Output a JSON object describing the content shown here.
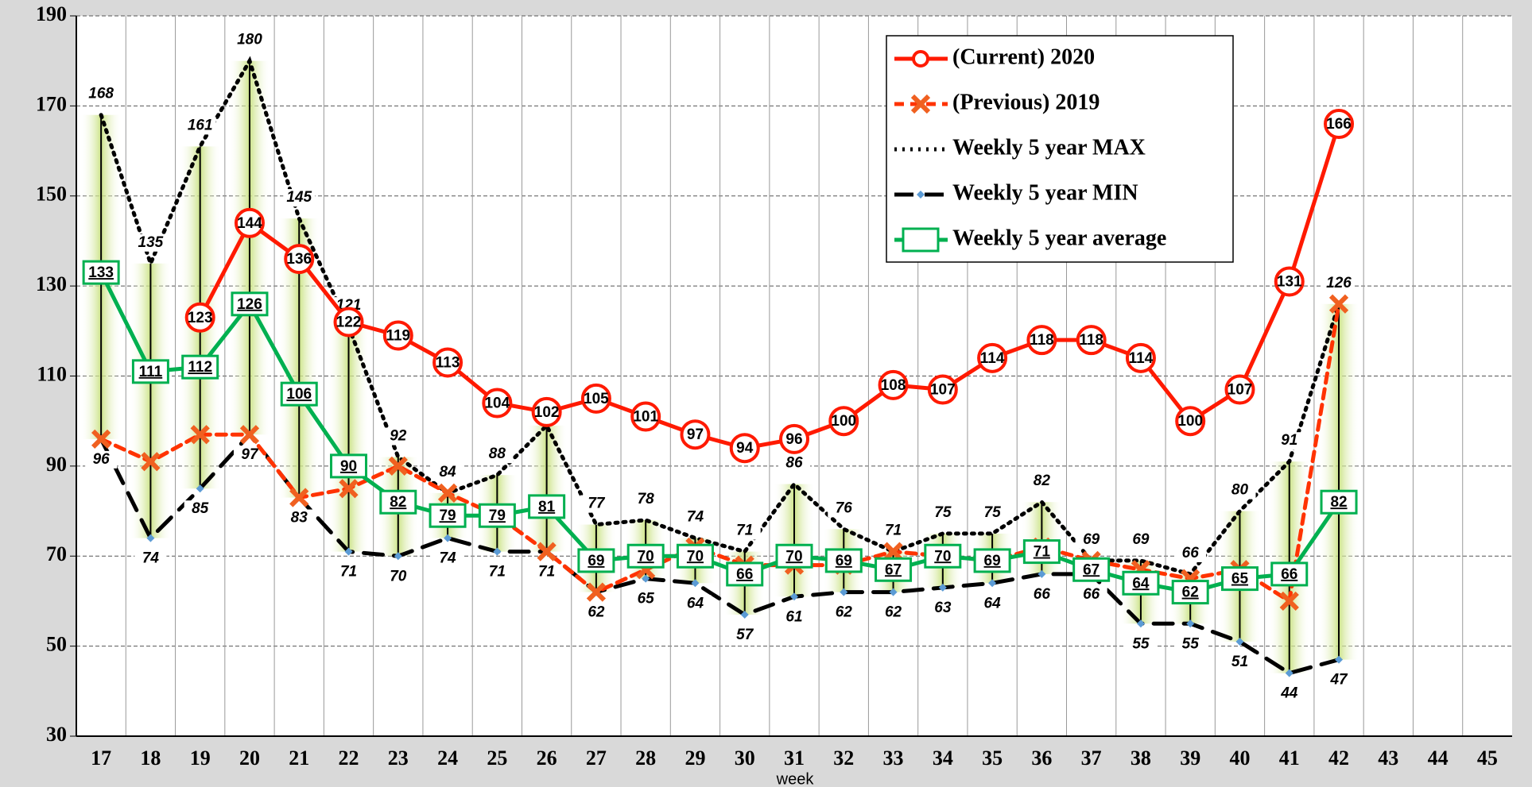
{
  "chart_data": {
    "type": "line",
    "x_label": "week",
    "categories": [
      "17",
      "18",
      "19",
      "20",
      "21",
      "22",
      "23",
      "24",
      "25",
      "26",
      "27",
      "28",
      "29",
      "30",
      "31",
      "32",
      "33",
      "34",
      "35",
      "36",
      "37",
      "38",
      "39",
      "40",
      "41",
      "42",
      "43",
      "44",
      "45"
    ],
    "ylim": [
      30,
      190
    ],
    "yticks": [
      30,
      50,
      70,
      90,
      110,
      130,
      150,
      170,
      190
    ],
    "grid": true,
    "legend": "upper right",
    "series": [
      {
        "name": "(Current) 2020",
        "color": "#ff1a00",
        "marker": "circle",
        "dash": "solid",
        "data_labels": true,
        "values": [
          null,
          null,
          123,
          144,
          136,
          122,
          119,
          113,
          104,
          102,
          105,
          101,
          97,
          94,
          96,
          100,
          108,
          107,
          114,
          118,
          118,
          114,
          100,
          107,
          131,
          166,
          null,
          null,
          null
        ]
      },
      {
        "name": "(Previous) 2019",
        "color": "#ff3300",
        "marker": "x",
        "dash": "dashed",
        "data_labels": false,
        "values": [
          96,
          91,
          97,
          97,
          83,
          85,
          90,
          84,
          79,
          71,
          62,
          67,
          72,
          68,
          68,
          68,
          71,
          70,
          69,
          72,
          69,
          67,
          65,
          67,
          60,
          126,
          null,
          null,
          null
        ]
      },
      {
        "name": "Weekly 5 year MAX",
        "color": "#000000",
        "marker": "none",
        "dash": "dotted",
        "data_labels": true,
        "values": [
          168,
          135,
          161,
          180,
          145,
          121,
          92,
          84,
          88,
          99,
          77,
          78,
          74,
          71,
          86,
          76,
          71,
          75,
          75,
          82,
          69,
          69,
          66,
          80,
          91,
          126,
          null,
          null,
          null
        ]
      },
      {
        "name": "Weekly 5 year MIN",
        "color": "#000000",
        "marker": "diamond",
        "dash": "longdash",
        "data_labels": true,
        "values": [
          96,
          74,
          85,
          97,
          83,
          71,
          70,
          74,
          71,
          71,
          62,
          65,
          64,
          57,
          61,
          62,
          62,
          63,
          64,
          66,
          66,
          55,
          55,
          51,
          44,
          47,
          null,
          null,
          null
        ]
      },
      {
        "name": "Weekly 5 year average",
        "color": "#00b050",
        "marker": "square",
        "dash": "solid",
        "data_labels": true,
        "values": [
          133,
          111,
          112,
          126,
          106,
          90,
          82,
          79,
          79,
          81,
          69,
          70,
          70,
          66,
          70,
          69,
          67,
          70,
          69,
          71,
          67,
          64,
          62,
          65,
          66,
          82,
          null,
          null,
          null
        ]
      }
    ]
  }
}
